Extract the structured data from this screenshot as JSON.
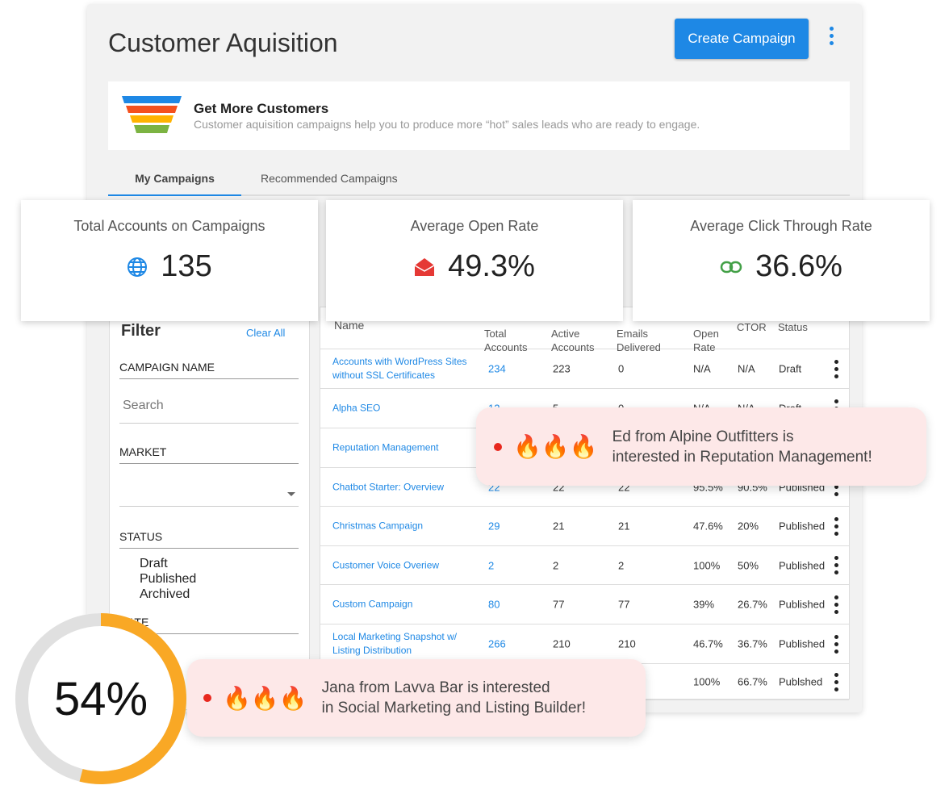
{
  "header": {
    "title": "Customer Aquisition",
    "create_label": "Create Campaign"
  },
  "banner": {
    "title": "Get More Customers",
    "subtitle": "Customer aquisition campaigns help you to produce more “hot” sales leads who are ready to engage.",
    "funnel_colors": [
      "#1e88e5",
      "#f4511e",
      "#ffb300",
      "#7cb342"
    ]
  },
  "tabs": [
    {
      "label": "My Campaigns",
      "active": true
    },
    {
      "label": "Recommended Campaigns",
      "active": false
    }
  ],
  "stats": [
    {
      "label": "Total Accounts on Campaigns",
      "value": "135",
      "icon": "globe-icon",
      "color": "#1e88e5"
    },
    {
      "label": "Average Open Rate",
      "value": "49.3%",
      "icon": "open-envelope-icon",
      "color": "#e53935"
    },
    {
      "label": "Average Click Through Rate",
      "value": "36.6%",
      "icon": "link-icon",
      "color": "#43a047"
    }
  ],
  "filter": {
    "title": "Filter",
    "clear_label": "Clear All",
    "campaign_name_label": "CAMPAIGN NAME",
    "search_placeholder": "Search",
    "market_label": "MARKET",
    "status_label": "STATUS",
    "status_options": [
      "Draft",
      "Published",
      "Archived"
    ],
    "date_label": "DATE"
  },
  "table": {
    "headers": [
      "Name",
      "Total Accounts",
      "Active Accounts",
      "Emails Delivered",
      "Open Rate",
      "CTOR",
      "Status"
    ],
    "rows": [
      [
        "Accounts with WordPress Sites without SSL Certificates",
        "234",
        "223",
        "0",
        "N/A",
        "N/A",
        "Draft"
      ],
      [
        "Alpha SEO",
        "12",
        "5",
        "0",
        "N/A",
        "N/A",
        "Draft"
      ],
      [
        "Reputation Management",
        "",
        "",
        "",
        "",
        "",
        ""
      ],
      [
        "Chatbot Starter: Overview",
        "22",
        "22",
        "22",
        "95.5%",
        "90.5%",
        "Published"
      ],
      [
        "Christmas Campaign",
        "29",
        "21",
        "21",
        "47.6%",
        "20%",
        "Published"
      ],
      [
        "Customer Voice Overiew",
        "2",
        "2",
        "2",
        "100%",
        "50%",
        "Published"
      ],
      [
        "Custom Campaign",
        "80",
        "77",
        "77",
        "39%",
        "26.7%",
        "Published"
      ],
      [
        "Local Marketing Snapshot w/ Listing Distribution",
        "266",
        "210",
        "210",
        "46.7%",
        "36.7%",
        "Published"
      ],
      [
        "",
        "",
        "",
        "",
        "100%",
        "66.7%",
        "Publshed"
      ]
    ]
  },
  "toasts": [
    {
      "line1": "Ed from Alpine Outfitters is",
      "line2": "interested in Reputation Management!"
    },
    {
      "line1": "Jana from Lavva Bar is interested",
      "line2": "in Social Marketing and  Listing Builder!"
    }
  ],
  "progress": {
    "label": "54%",
    "value": 54,
    "color": "#f9a825"
  }
}
